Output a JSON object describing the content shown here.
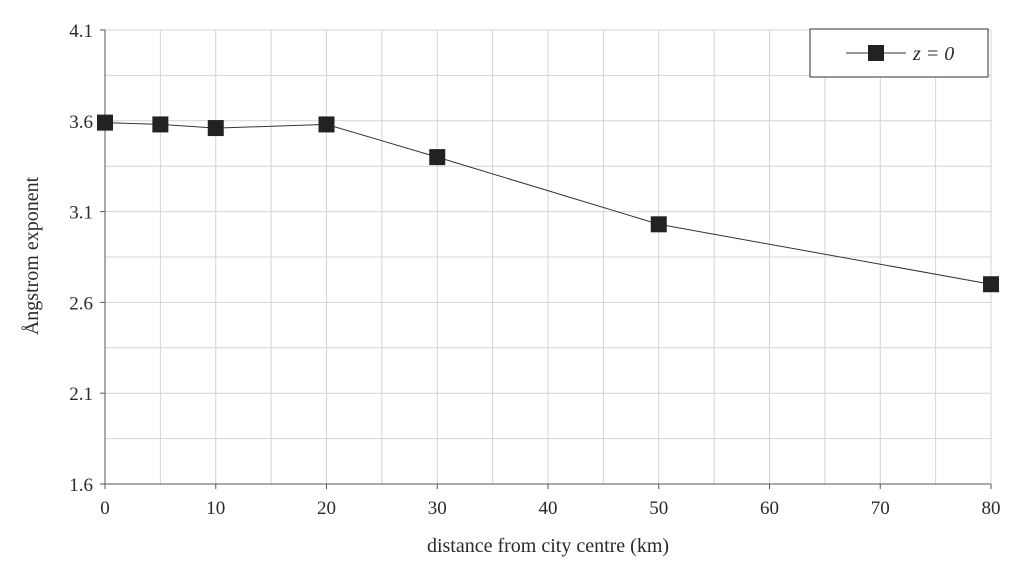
{
  "chart_data": {
    "type": "line",
    "title": "",
    "xlabel": "distance from city centre (km)",
    "ylabel": "Ångstrom exponent",
    "xlim": [
      0,
      80
    ],
    "ylim": [
      1.6,
      4.1
    ],
    "xticks": [
      "0",
      "10",
      "20",
      "30",
      "40",
      "50",
      "60",
      "70",
      "80"
    ],
    "yticks": [
      "1.6",
      "2.1",
      "2.6",
      "3.1",
      "3.6",
      "4.1"
    ],
    "x_gridlines_every": 5,
    "y_gridlines_every": 0.25,
    "grid": true,
    "legend_position": "top-right",
    "series": [
      {
        "name": "z = 0",
        "marker": "square",
        "color": "#222222",
        "x": [
          0,
          5,
          10,
          20,
          30,
          50,
          80
        ],
        "y": [
          3.59,
          3.58,
          3.56,
          3.58,
          3.4,
          3.03,
          2.7
        ]
      }
    ]
  }
}
